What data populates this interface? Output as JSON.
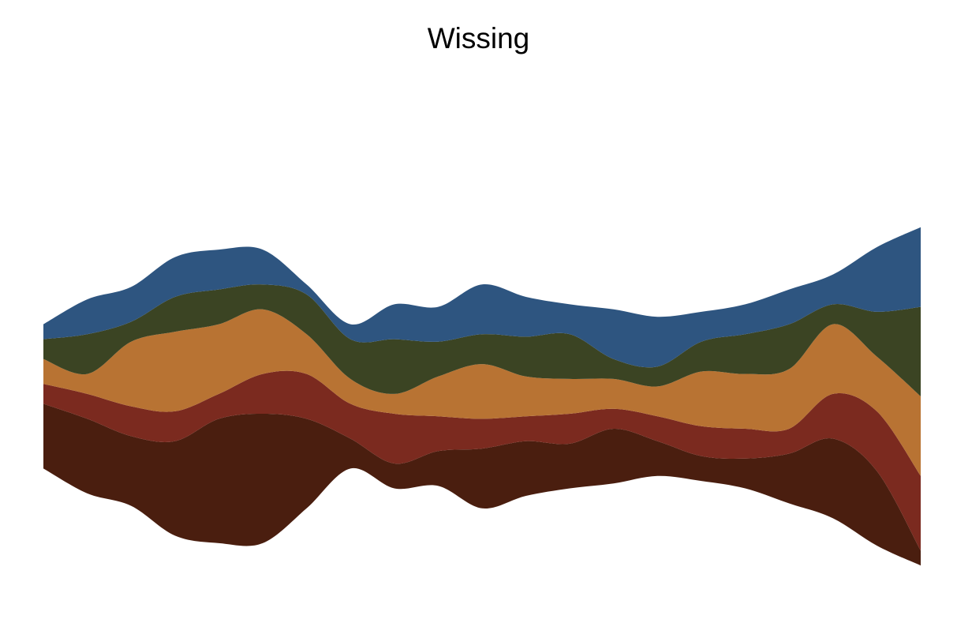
{
  "chart_data": {
    "type": "area",
    "subtype": "streamgraph",
    "title": "Wissing",
    "xlabel": "",
    "ylabel": "",
    "grid": false,
    "legend": "none",
    "x": [
      0,
      1,
      2,
      3,
      4,
      5,
      6,
      7,
      8,
      9,
      10,
      11,
      12,
      13,
      14,
      15,
      16,
      17,
      18,
      19,
      20
    ],
    "series": [
      {
        "color": "#4a1e0f",
        "values": [
          13,
          15,
          14,
          19,
          25,
          26,
          18,
          6,
          5,
          7,
          12,
          11,
          9,
          11,
          7,
          5,
          6,
          10,
          16,
          15,
          3
        ]
      },
      {
        "color": "#7b2a1f",
        "values": [
          4,
          5,
          6,
          6,
          5,
          8,
          9,
          7,
          10,
          7,
          6,
          5,
          6,
          4,
          5,
          6,
          6,
          5,
          9,
          12,
          15
        ]
      },
      {
        "color": "#b87333",
        "values": [
          5,
          4,
          13,
          16,
          14,
          13,
          8,
          5,
          4,
          8,
          11,
          8,
          7,
          6,
          6,
          11,
          11,
          12,
          14,
          11,
          16
        ]
      },
      {
        "color": "#3b4423",
        "values": [
          4,
          8,
          4,
          7,
          7,
          5,
          8,
          8,
          11,
          7,
          6,
          8,
          9,
          4,
          4,
          6,
          8,
          9,
          4,
          9,
          18
        ]
      },
      {
        "color": "#2e5580",
        "values": [
          3,
          7,
          7,
          8,
          8,
          7,
          2,
          3,
          7,
          7,
          10,
          8,
          6,
          10,
          10,
          6,
          6,
          7,
          6,
          13,
          16
        ]
      }
    ]
  }
}
